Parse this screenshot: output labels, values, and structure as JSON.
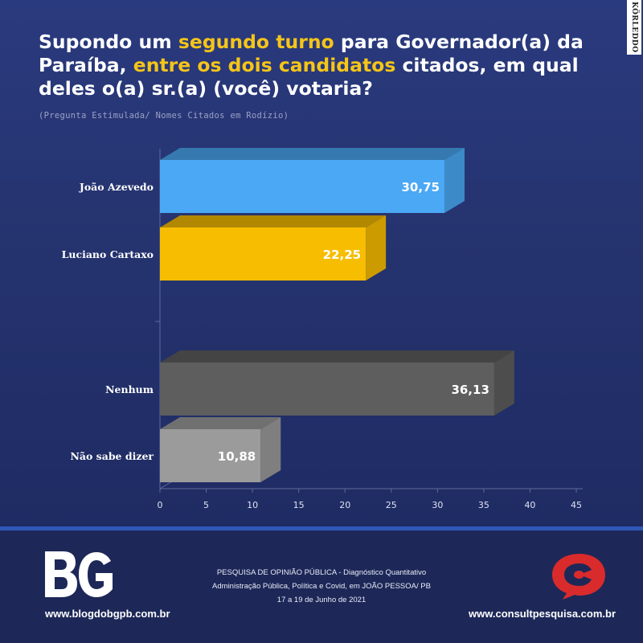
{
  "watermark": "KÖRLEDDO",
  "header": {
    "title_parts": [
      {
        "text": "Supondo um ",
        "hl": false
      },
      {
        "text": "segundo turno",
        "hl": true
      },
      {
        "text": " para Governador(a) da Paraíba, ",
        "hl": false
      },
      {
        "text": "entre os dois candidatos",
        "hl": true
      },
      {
        "text": " citados, em qual deles o(a) sr.(a) (você) votaria?",
        "hl": false
      }
    ],
    "subtitle": "(Pregunta Estimulada/ Nomes Citados em Rodízio)"
  },
  "chart_data": {
    "type": "bar",
    "orientation": "horizontal",
    "style": "3d",
    "categories": [
      "João Azevedo",
      "Luciano Cartaxo",
      "Nenhum",
      "Não sabe dizer"
    ],
    "values": [
      30.75,
      22.25,
      36.13,
      10.88
    ],
    "value_labels": [
      "30,75",
      "22,25",
      "36,13",
      "10,88"
    ],
    "colors": [
      "#4aa8f5",
      "#f7bd00",
      "#5e5e5e",
      "#9b9b9b"
    ],
    "xlim": [
      0,
      45
    ],
    "xticks": [
      "0",
      "5",
      "10",
      "15",
      "20",
      "25",
      "30",
      "35",
      "40",
      "45"
    ],
    "grid": false,
    "legend": "none"
  },
  "footer": {
    "logo_text": "BG",
    "site_left": "www.blogdobgpb.com.br",
    "survey_lines": [
      "PESQUISA DE OPINIÃO PÚBLICA - Diagnóstico Quantitativo",
      "Administração Pública, Política e Covid, em JOÃO PESSOA/ PB",
      "17 a 19 de Junho de 2021"
    ],
    "site_right": "www.consultpesquisa.com.br"
  }
}
